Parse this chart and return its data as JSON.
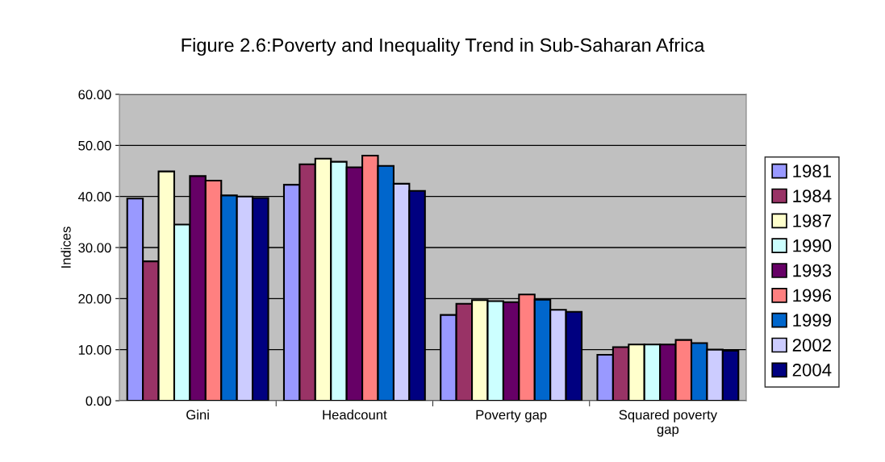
{
  "chart_data": {
    "type": "bar",
    "title": "Figure 2.6:Poverty and Inequality Trend in Sub-Saharan Africa",
    "ylabel": "Indices",
    "categories": [
      "Gini",
      "Headcount",
      "Poverty gap",
      "Squared poverty\ngap"
    ],
    "series": [
      {
        "name": "1981",
        "color": "#9999ff",
        "values": [
          39.6,
          42.3,
          16.8,
          9.0
        ]
      },
      {
        "name": "1984",
        "color": "#993366",
        "values": [
          27.3,
          46.3,
          19.0,
          10.5
        ]
      },
      {
        "name": "1987",
        "color": "#ffffcc",
        "values": [
          44.9,
          47.4,
          19.7,
          11.0
        ]
      },
      {
        "name": "1990",
        "color": "#ccffff",
        "values": [
          34.5,
          46.8,
          19.5,
          11.0
        ]
      },
      {
        "name": "1993",
        "color": "#660066",
        "values": [
          44.0,
          45.7,
          19.3,
          11.0
        ]
      },
      {
        "name": "1996",
        "color": "#ff8080",
        "values": [
          43.1,
          48.0,
          20.8,
          11.9
        ]
      },
      {
        "name": "1999",
        "color": "#0066cc",
        "values": [
          40.2,
          46.0,
          19.8,
          11.3
        ]
      },
      {
        "name": "2002",
        "color": "#ccccff",
        "values": [
          40.0,
          42.5,
          17.8,
          10.0
        ]
      },
      {
        "name": "2004",
        "color": "#000080",
        "values": [
          39.7,
          41.1,
          17.4,
          9.8
        ]
      }
    ],
    "ylim": [
      0,
      60
    ],
    "yticks": [
      {
        "value": 0,
        "label": "0.00"
      },
      {
        "value": 10,
        "label": "10.00"
      },
      {
        "value": 20,
        "label": "20.00"
      },
      {
        "value": 30,
        "label": "30.00"
      },
      {
        "value": 40,
        "label": "40.00"
      },
      {
        "value": 50,
        "label": "50.00"
      },
      {
        "value": 60,
        "label": "60.00"
      }
    ],
    "grid": "y",
    "legend": "right"
  }
}
